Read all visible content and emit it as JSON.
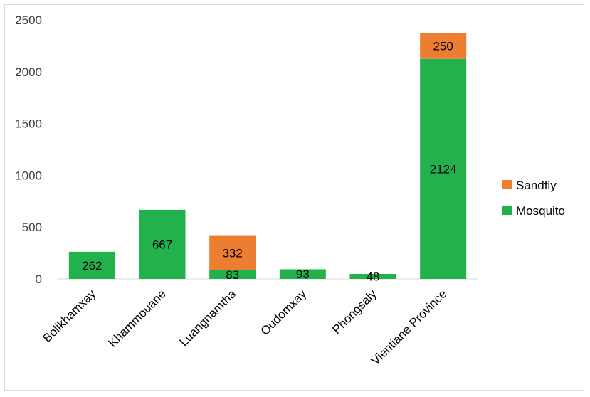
{
  "chart_data": {
    "type": "bar",
    "stacked": true,
    "title": "",
    "xlabel": "",
    "ylabel": "",
    "ylim": [
      0,
      2500
    ],
    "yticks": [
      0,
      500,
      1000,
      1500,
      2000,
      2500
    ],
    "grid": false,
    "legend_position": "right",
    "categories": [
      "Bolikhamxay",
      "Khammouane",
      "Luangnamtha",
      "Oudomxay",
      "Phongsaly",
      "Vientiane Province"
    ],
    "series": [
      {
        "name": "Mosquito",
        "color": "#22b14c",
        "values": [
          262,
          667,
          83,
          93,
          48,
          2124
        ]
      },
      {
        "name": "Sandfly",
        "color": "#ed7d31",
        "values": [
          0,
          0,
          332,
          0,
          0,
          250
        ]
      }
    ]
  }
}
